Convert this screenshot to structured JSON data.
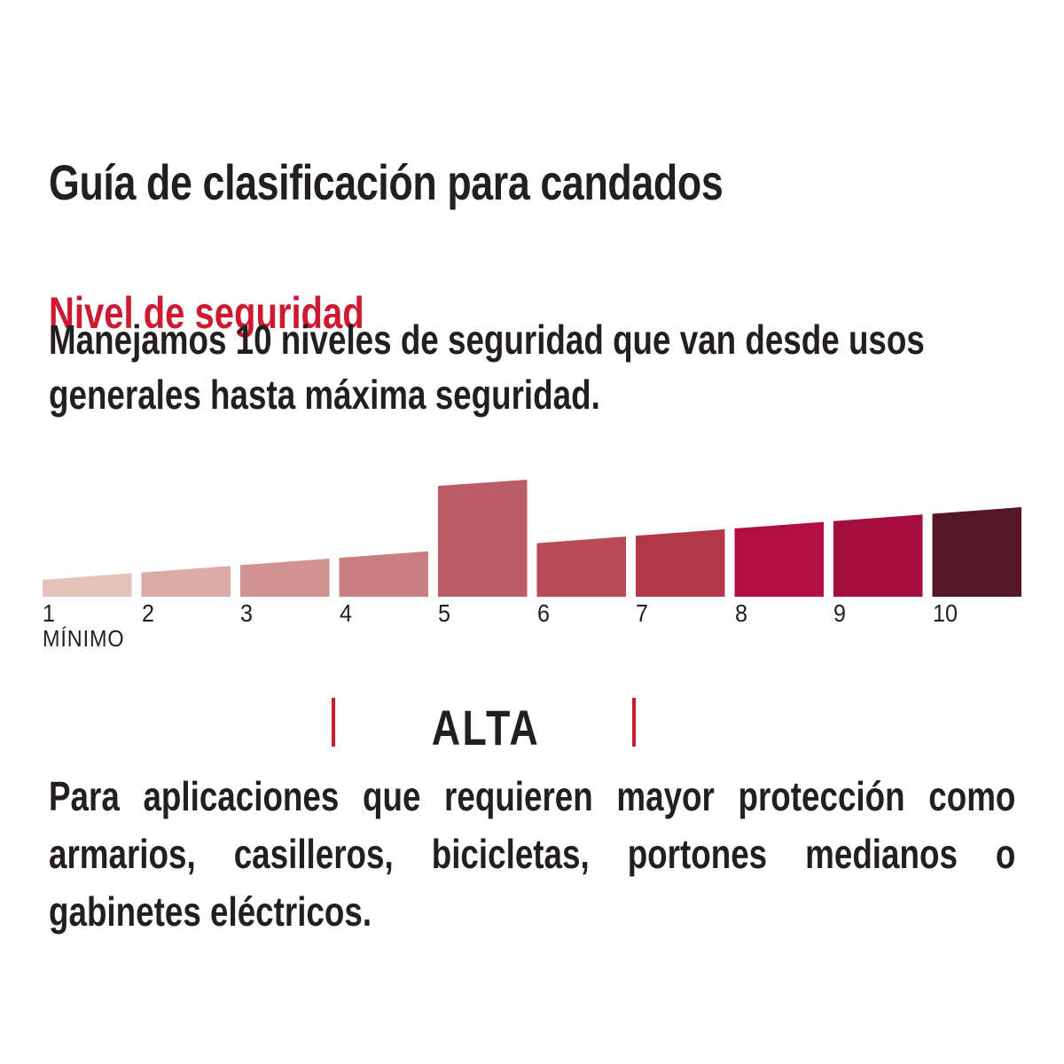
{
  "page": {
    "title": "Guía de clasificación para candados",
    "section": {
      "heading": "Nivel de seguridad",
      "intro_lines": [
        "Manejamos 10 niveles de seguridad que van desde usos",
        "generales hasta máxima seguridad."
      ]
    },
    "description_lines": [
      "Para aplicaciones que requieren mayor protección como",
      "armarios, casilleros, bicicletas, portones medianos o",
      "gabinetes eléctricos."
    ]
  },
  "colors": {
    "accent_red": "#CE1A30",
    "text_dark": "#231F20",
    "background": "#FFFFFF"
  },
  "chart_data": {
    "type": "bar",
    "title": "Nivel de seguridad",
    "categories": [
      "1",
      "2",
      "3",
      "4",
      "5",
      "6",
      "7",
      "8",
      "9",
      "10"
    ],
    "values": [
      1,
      2,
      3,
      4,
      5,
      6,
      7,
      8,
      9,
      10
    ],
    "highlighted_category": "5",
    "min_label": "MÍNIMO",
    "range_annotation": {
      "label": "ALTA",
      "covers_levels": [
        4,
        5,
        6
      ]
    },
    "bar_colors": [
      "#E5C2BA",
      "#DBABA5",
      "#D09392",
      "#C97F81",
      "#BD5C66",
      "#B84B55",
      "#B23848",
      "#B10E42",
      "#A50F3E",
      "#541824"
    ],
    "xlabel": "",
    "ylabel": "",
    "legend": "none"
  }
}
